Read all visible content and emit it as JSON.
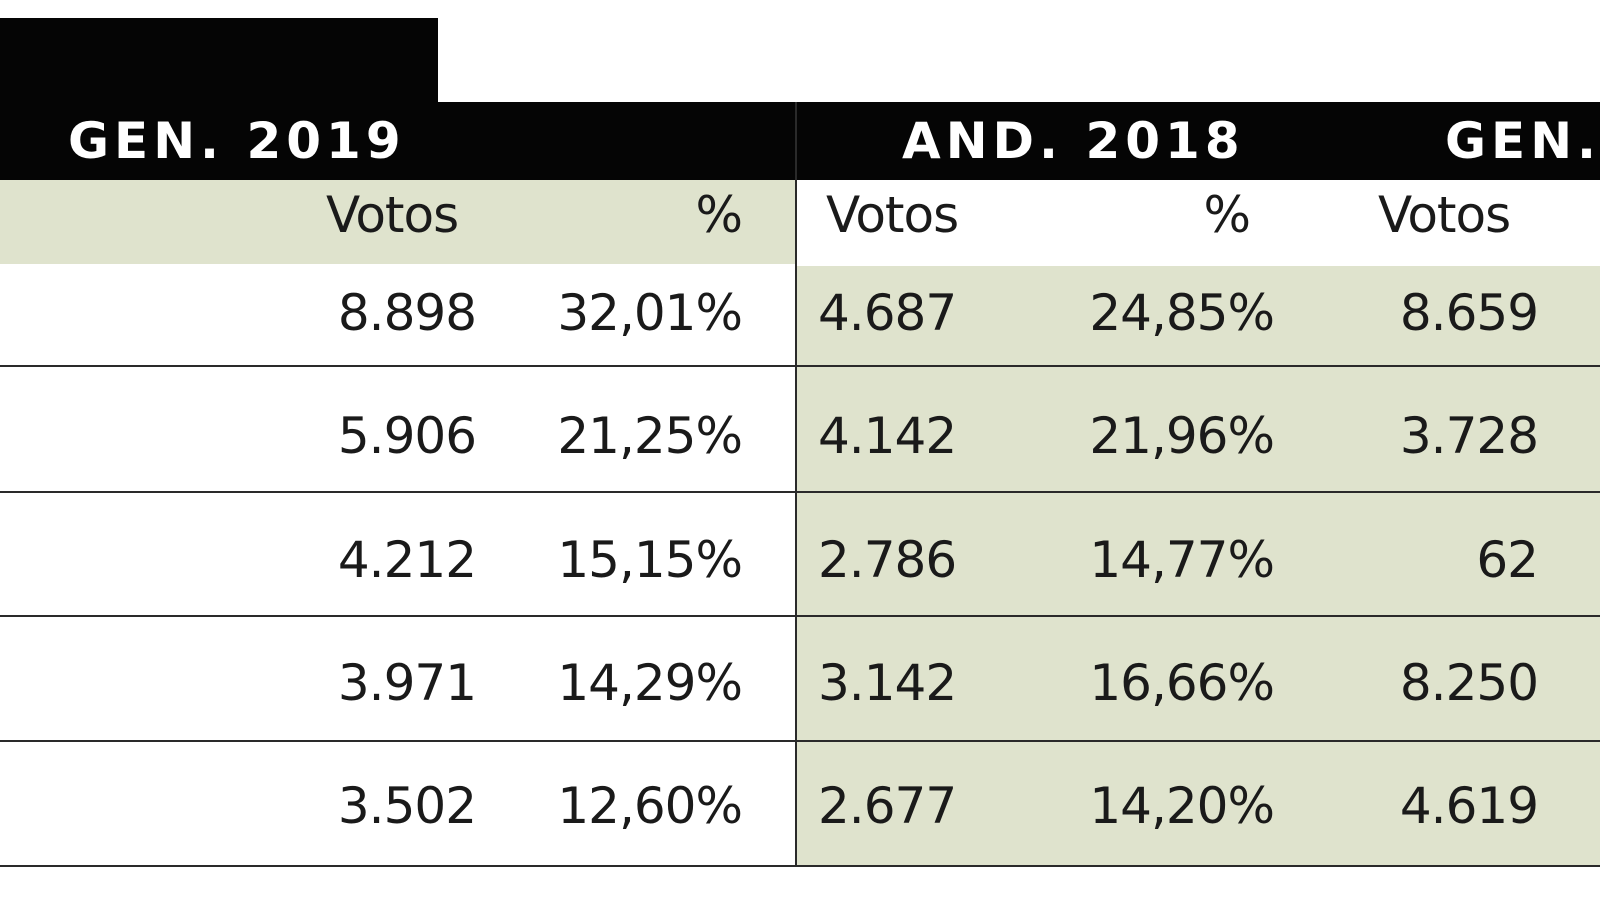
{
  "headers": {
    "gen_2019": "GEN. 2019",
    "and_2018": "AND. 2018",
    "gen_cut": "GEN."
  },
  "subheaders": {
    "col1": "Votos",
    "col2": "%",
    "col3": "Votos",
    "col4": "%",
    "col5": "Votos"
  },
  "rows": [
    {
      "gen2019_votos": "8.898",
      "gen2019_pct": "32,01%",
      "and2018_votos": "4.687",
      "and2018_pct": "24,85%",
      "gen_votos": "8.659"
    },
    {
      "gen2019_votos": "5.906",
      "gen2019_pct": "21,25%",
      "and2018_votos": "4.142",
      "and2018_pct": "21,96%",
      "gen_votos": "3.728"
    },
    {
      "gen2019_votos": "4.212",
      "gen2019_pct": "15,15%",
      "and2018_votos": "2.786",
      "and2018_pct": "14,77%",
      "gen_votos": "62"
    },
    {
      "gen2019_votos": "3.971",
      "gen2019_pct": "14,29%",
      "and2018_votos": "3.142",
      "and2018_pct": "16,66%",
      "gen_votos": "8.250"
    },
    {
      "gen2019_votos": "3.502",
      "gen2019_pct": "12,60%",
      "and2018_votos": "2.677",
      "and2018_pct": "14,20%",
      "gen_votos": "4.619"
    }
  ]
}
